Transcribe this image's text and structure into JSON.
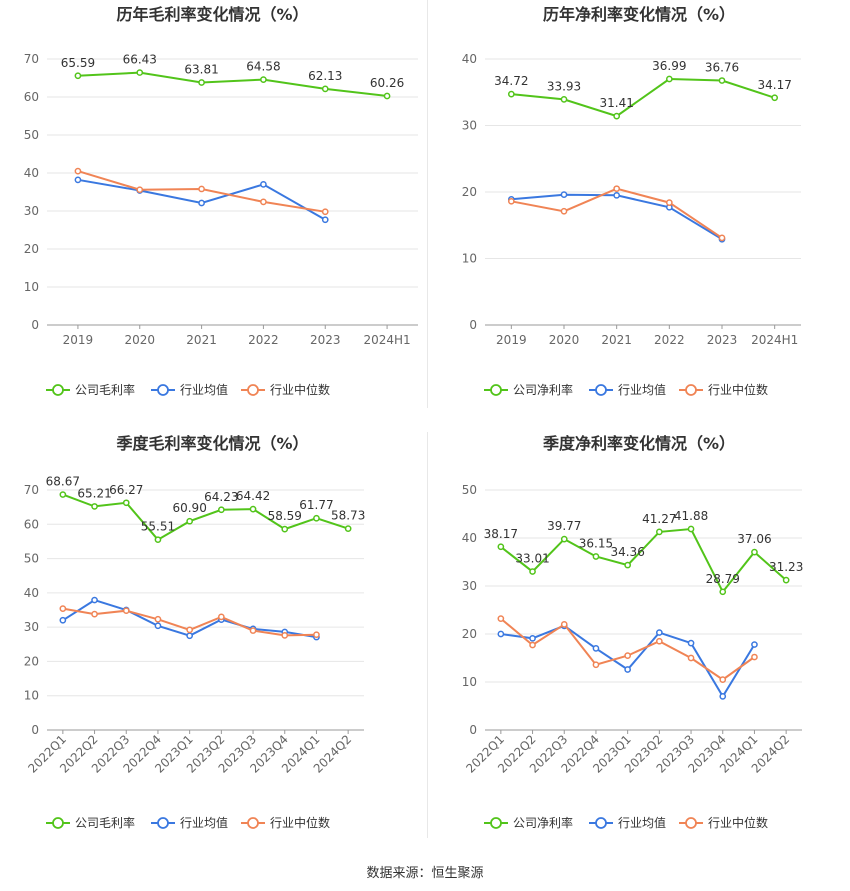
{
  "source_label": "数据来源：恒生聚源",
  "colors": {
    "company": "#52c41a",
    "industry_avg": "#3a78e0",
    "industry_median": "#f08455",
    "grid": "#e6e6e6",
    "axis": "#666666"
  },
  "chart_data": [
    {
      "type": "line",
      "title": "历年毛利率变化情况（%）",
      "categories": [
        "2019",
        "2020",
        "2021",
        "2022",
        "2023",
        "2024H1"
      ],
      "ylim": [
        0,
        70
      ],
      "yticks": [
        0,
        10,
        20,
        30,
        40,
        50,
        60,
        70
      ],
      "rotate_xlabels": false,
      "grid": true,
      "legend": "bottom",
      "series": [
        {
          "name": "公司毛利率",
          "key": "company",
          "labels": true,
          "values": [
            65.59,
            66.43,
            63.81,
            64.58,
            62.13,
            60.26
          ]
        },
        {
          "name": "行业均值",
          "key": "industry_avg",
          "labels": false,
          "values": [
            38.2,
            35.4,
            32.1,
            37.0,
            27.7,
            null
          ]
        },
        {
          "name": "行业中位数",
          "key": "industry_median",
          "labels": false,
          "values": [
            40.5,
            35.6,
            35.8,
            32.4,
            29.8,
            null
          ]
        }
      ]
    },
    {
      "type": "line",
      "title": "历年净利率变化情况（%）",
      "categories": [
        "2019",
        "2020",
        "2021",
        "2022",
        "2023",
        "2024H1"
      ],
      "ylim": [
        0,
        40
      ],
      "yticks": [
        0,
        10,
        20,
        30,
        40
      ],
      "rotate_xlabels": false,
      "grid": true,
      "legend": "bottom",
      "series": [
        {
          "name": "公司净利率",
          "key": "company",
          "labels": true,
          "values": [
            34.72,
            33.93,
            31.41,
            36.99,
            36.76,
            34.17
          ]
        },
        {
          "name": "行业均值",
          "key": "industry_avg",
          "labels": false,
          "values": [
            18.9,
            19.6,
            19.5,
            17.7,
            12.9,
            null
          ]
        },
        {
          "name": "行业中位数",
          "key": "industry_median",
          "labels": false,
          "values": [
            18.6,
            17.1,
            20.5,
            18.4,
            13.1,
            null
          ]
        }
      ]
    },
    {
      "type": "line",
      "title": "季度毛利率变化情况（%）",
      "categories": [
        "2022Q1",
        "2022Q2",
        "2022Q3",
        "2022Q4",
        "2023Q1",
        "2023Q2",
        "2023Q3",
        "2023Q4",
        "2024Q1",
        "2024Q2"
      ],
      "ylim": [
        0,
        70
      ],
      "yticks": [
        0,
        10,
        20,
        30,
        40,
        50,
        60,
        70
      ],
      "rotate_xlabels": true,
      "grid": true,
      "legend": "bottom",
      "series": [
        {
          "name": "公司毛利率",
          "key": "company",
          "labels": true,
          "values": [
            68.67,
            65.21,
            66.27,
            55.51,
            60.9,
            64.23,
            64.42,
            58.59,
            61.77,
            58.73
          ]
        },
        {
          "name": "行业均值",
          "key": "industry_avg",
          "labels": false,
          "values": [
            32.0,
            37.9,
            35.0,
            30.4,
            27.5,
            32.2,
            29.5,
            28.6,
            27.1,
            null
          ]
        },
        {
          "name": "行业中位数",
          "key": "industry_median",
          "labels": false,
          "values": [
            35.4,
            33.8,
            34.8,
            32.3,
            29.2,
            33.0,
            29.0,
            27.6,
            27.8,
            null
          ]
        }
      ]
    },
    {
      "type": "line",
      "title": "季度净利率变化情况（%）",
      "categories": [
        "2022Q1",
        "2022Q2",
        "2022Q3",
        "2022Q4",
        "2023Q1",
        "2023Q2",
        "2023Q3",
        "2023Q4",
        "2024Q1",
        "2024Q2"
      ],
      "ylim": [
        0,
        50
      ],
      "yticks": [
        0,
        10,
        20,
        30,
        40,
        50
      ],
      "rotate_xlabels": true,
      "grid": true,
      "legend": "bottom",
      "series": [
        {
          "name": "公司净利率",
          "key": "company",
          "labels": true,
          "values": [
            38.17,
            33.01,
            39.77,
            36.15,
            34.36,
            41.27,
            41.88,
            28.79,
            37.06,
            31.23
          ]
        },
        {
          "name": "行业均值",
          "key": "industry_avg",
          "labels": false,
          "values": [
            20.0,
            19.1,
            21.7,
            17.0,
            12.6,
            20.3,
            18.1,
            7.0,
            17.8,
            null
          ]
        },
        {
          "name": "行业中位数",
          "key": "industry_median",
          "labels": false,
          "values": [
            23.2,
            17.7,
            22.0,
            13.6,
            15.5,
            18.5,
            15.0,
            10.5,
            15.2,
            null
          ]
        }
      ]
    }
  ]
}
